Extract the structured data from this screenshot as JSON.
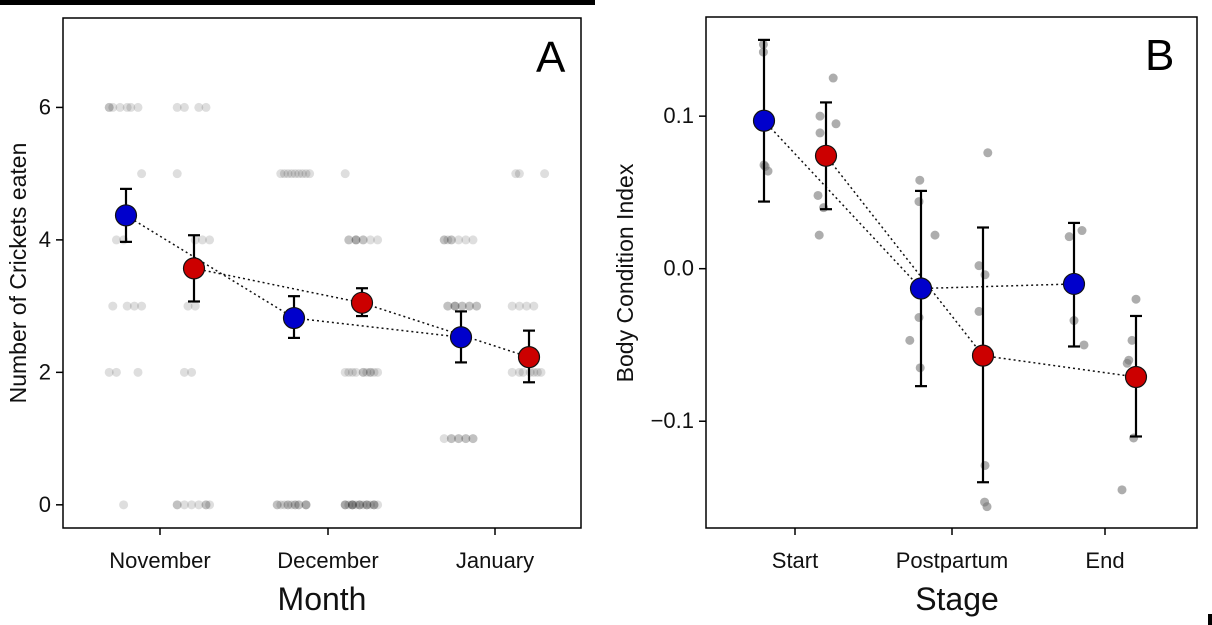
{
  "chart_data": [
    {
      "panel": "A",
      "type": "scatter",
      "panel_label": "A",
      "xlabel": "Month",
      "ylabel": "Number of Crickets eaten",
      "categories": [
        "November",
        "December",
        "January"
      ],
      "yticks": [
        0,
        2,
        4,
        6
      ],
      "ylim": [
        -0.35,
        7.35
      ],
      "grid": false,
      "series": [
        {
          "color": "#0000cc",
          "means": [
            4.37,
            2.82,
            2.53
          ],
          "err_low": [
            3.97,
            2.52,
            2.15
          ],
          "err_high": [
            4.77,
            3.15,
            2.92
          ]
        },
        {
          "color": "#cc0000",
          "means": [
            3.57,
            3.05,
            2.23
          ],
          "err_low": [
            3.07,
            2.85,
            1.85
          ],
          "err_high": [
            4.07,
            3.27,
            2.63
          ]
        }
      ],
      "raw_points": {
        "color": "#000000",
        "November": {
          "0": [
            [
              0,
              6
            ],
            [
              1,
              6
            ],
            [
              2,
              6
            ],
            [
              0,
              5
            ],
            [
              1,
              4
            ],
            [
              3,
              3
            ],
            [
              2,
              2
            ],
            [
              0,
              6
            ],
            [
              0,
              0
            ]
          ],
          "1": [
            [
              0,
              5
            ],
            [
              1,
              3
            ],
            [
              3,
              6
            ],
            [
              0,
              0
            ],
            [
              1,
              2
            ],
            [
              2,
              4
            ],
            [
              6,
              0
            ]
          ]
        },
        "December": {
          "0": [
            [
              0,
              0
            ],
            [
              0,
              0
            ],
            [
              1,
              0
            ],
            [
              4,
              5
            ],
            [
              3,
              5
            ],
            [
              0,
              0
            ],
            [
              5,
              0
            ],
            [
              2,
              0
            ]
          ],
          "1": [
            [
              0,
              5
            ],
            [
              1,
              4
            ],
            [
              3,
              2
            ],
            [
              4,
              0
            ],
            [
              7,
              0
            ],
            [
              6,
              2
            ],
            [
              7,
              0
            ],
            [
              6,
              4
            ]
          ]
        },
        "January": {
          "0": [
            [
              6,
              4
            ],
            [
              5,
              3
            ],
            [
              4,
              1
            ],
            [
              2,
              3
            ],
            [
              2,
              1
            ],
            [
              1,
              3
            ],
            [
              0,
              1
            ],
            [
              0,
              4
            ]
          ],
          "1": [
            [
              3,
              3
            ],
            [
              2,
              2
            ],
            [
              3,
              2
            ],
            [
              1,
              5
            ],
            [
              0,
              5
            ]
          ]
        }
      }
    },
    {
      "panel": "B",
      "type": "scatter",
      "panel_label": "B",
      "xlabel": "Stage",
      "ylabel": "Body Condition Index",
      "categories": [
        "Start",
        "Postpartum",
        "End"
      ],
      "yticks": [
        -0.1,
        0.0,
        0.1
      ],
      "ytick_labels": [
        "−0.1",
        "0.0",
        "0.1"
      ],
      "ylim": [
        -0.17,
        0.165
      ],
      "grid": false,
      "series": [
        {
          "color": "#0000cc",
          "means": [
            0.097,
            -0.013,
            -0.01
          ],
          "err_low": [
            0.044,
            -0.077,
            -0.051
          ],
          "err_high": [
            0.15,
            0.051,
            0.03
          ]
        },
        {
          "color": "#cc0000",
          "means": [
            0.074,
            -0.057,
            -0.071
          ],
          "err_low": [
            0.039,
            -0.14,
            -0.11
          ],
          "err_high": [
            0.109,
            0.027,
            -0.031
          ]
        }
      ],
      "raw_points": {
        "color": "#888888",
        "Start": {
          "0": [
            -0.0015,
            0.142,
            -0.0015,
            0.147,
            0.0,
            0.068,
            0.01,
            0.064,
            0.003,
            0.067
          ],
          "1": [
            -0.015,
            0.1,
            -0.015,
            0.089,
            -0.02,
            0.048,
            -0.006,
            0.04,
            0.025,
            0.095,
            0.018,
            0.125,
            -0.017,
            0.022
          ]
        },
        "Postpartum": {
          "0": [
            -0.003,
            0.058,
            -0.005,
            0.044,
            0.035,
            0.022,
            -0.028,
            -0.047,
            -0.002,
            -0.065,
            -0.005,
            -0.032
          ],
          "1": [
            0.012,
            0.076,
            0.005,
            -0.004,
            -0.01,
            0.002,
            -0.01,
            -0.028,
            0.005,
            -0.129,
            0.01,
            -0.156,
            0.004,
            -0.153
          ]
        },
        "End": {
          "0": [
            -0.012,
            0.021,
            0.02,
            0.025,
            0.0,
            -0.034,
            0.025,
            -0.05
          ],
          "1": [
            0.0,
            -0.02,
            -0.022,
            -0.062,
            -0.01,
            -0.047,
            -0.018,
            -0.06,
            -0.006,
            -0.111,
            -0.035,
            -0.145
          ]
        }
      }
    }
  ]
}
